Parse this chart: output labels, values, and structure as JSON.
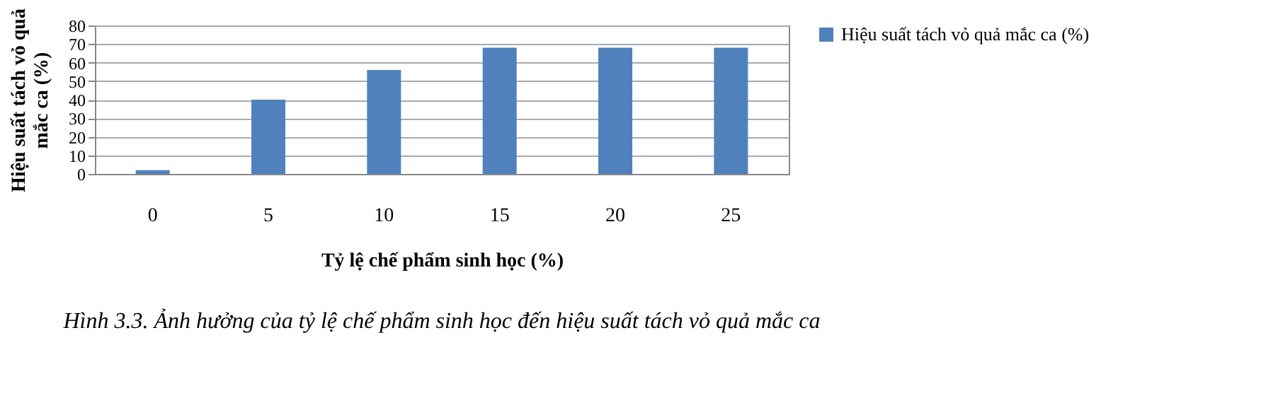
{
  "chart_data": {
    "type": "bar",
    "xlabel": "Tỷ lệ chế phẩm sinh học (%)",
    "ylabel": "Hiệu suất tách vỏ quả mắc ca (%)",
    "categories": [
      "0",
      "5",
      "10",
      "15",
      "20",
      "25"
    ],
    "series": [
      {
        "name": "Hiệu suất tách vỏ quả mắc ca (%)",
        "color": "#4f81bd",
        "values": [
          2,
          40,
          56,
          68,
          68,
          68
        ]
      }
    ],
    "ylim": [
      0,
      80
    ],
    "yticks": [
      0,
      10,
      20,
      30,
      40,
      50,
      60,
      70,
      80
    ],
    "grid": "y",
    "legend": "right",
    "annotations": [
      "Hình 3.3. Ảnh hưởng của tỷ lệ chế phẩm sinh học đến hiệu suất tách vỏ quả mắc ca"
    ]
  }
}
